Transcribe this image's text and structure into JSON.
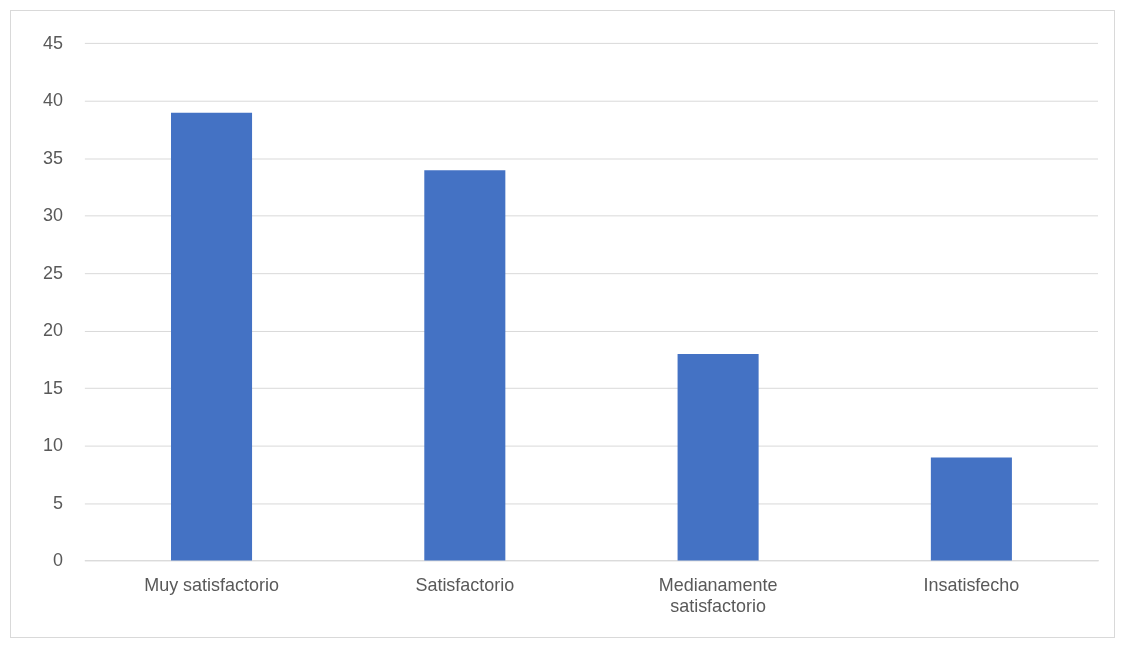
{
  "chart_data": {
    "type": "bar",
    "categories": [
      "Muy satisfactorio",
      "Satisfactorio",
      "Medianamente satisfactorio",
      "Insatisfecho"
    ],
    "values": [
      39,
      34,
      18,
      9
    ],
    "color": "#4472c4",
    "ylim": [
      0,
      45
    ],
    "yticks": [
      0,
      5,
      10,
      15,
      20,
      25,
      30,
      35,
      40,
      45
    ],
    "grid": "y"
  }
}
